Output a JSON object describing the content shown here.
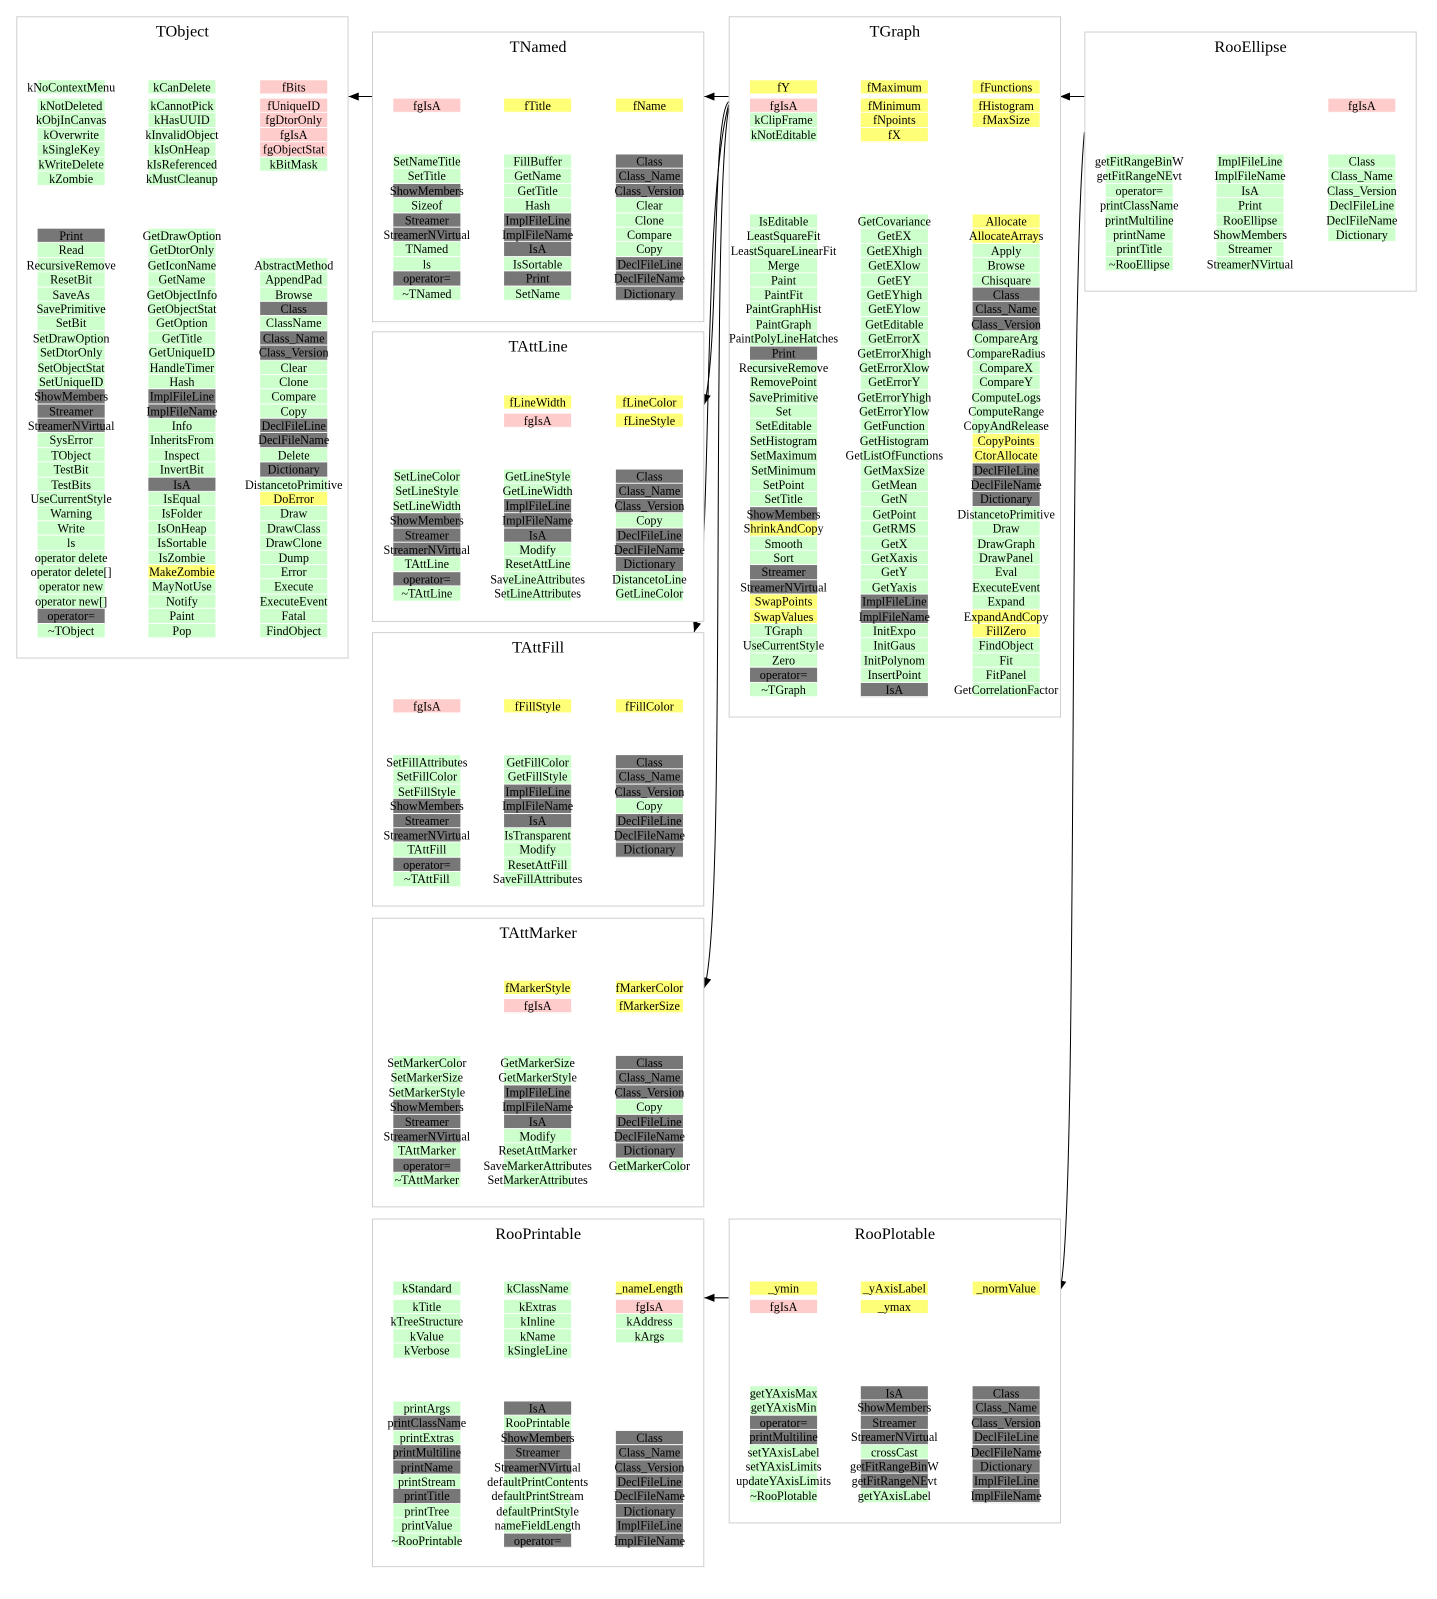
{
  "colors": {
    "g": "#ccffcc",
    "p": "#ffcccc",
    "y": "#ffff77",
    "d": "#777777"
  },
  "classes": [
    {
      "name": "TObject",
      "attributes": [
        [
          "g:kNoContextMenu",
          "g:kNotDeleted",
          "g:kObjInCanvas",
          "g:kOverwrite",
          "g:kSingleKey",
          "g:kWriteDelete",
          "g:kZombie"
        ],
        [
          "g:kCanDelete",
          "g:kCannotPick",
          "g:kHasUUID",
          "g:kInvalidObject",
          "g:kIsOnHeap",
          "g:kIsReferenced",
          "g:kMustCleanup"
        ],
        [
          "p:fBits",
          "p:fUniqueID",
          "p:fgDtorOnly",
          "p:fgIsA",
          "p:fgObjectStat",
          "g:kBitMask"
        ]
      ],
      "methods": [
        [
          "d:Print",
          "g:Read",
          "g:RecursiveRemove",
          "g:ResetBit",
          "g:SaveAs",
          "g:SavePrimitive",
          "g:SetBit",
          "g:SetDrawOption",
          "g:SetDtorOnly",
          "g:SetObjectStat",
          "g:SetUniqueID",
          "d:ShowMembers",
          "d:Streamer",
          "d:StreamerNVirtual",
          "g:SysError",
          "g:TObject",
          "g:TestBit",
          "g:TestBits",
          "g:UseCurrentStyle",
          "g:Warning",
          "g:Write",
          "g:ls",
          "g:operator delete",
          "g:operator delete[]",
          "g:operator new",
          "g:operator new[]",
          "d:operator=",
          "g:~TObject"
        ],
        [
          "g:GetDrawOption",
          "g:GetDtorOnly",
          "g:GetIconName",
          "g:GetName",
          "g:GetObjectInfo",
          "g:GetObjectStat",
          "g:GetOption",
          "g:GetTitle",
          "g:GetUniqueID",
          "g:HandleTimer",
          "g:Hash",
          "d:ImplFileLine",
          "d:ImplFileName",
          "g:Info",
          "g:InheritsFrom",
          "g:Inspect",
          "g:InvertBit",
          "d:IsA",
          "g:IsEqual",
          "g:IsFolder",
          "g:IsOnHeap",
          "g:IsSortable",
          "g:IsZombie",
          "y:MakeZombie",
          "g:MayNotUse",
          "g:Notify",
          "g:Paint",
          "g:Pop"
        ],
        [
          "g:AbstractMethod",
          "g:AppendPad",
          "g:Browse",
          "d:Class",
          "g:ClassName",
          "d:Class_Name",
          "d:Class_Version",
          "g:Clear",
          "g:Clone",
          "g:Compare",
          "g:Copy",
          "d:DeclFileLine",
          "d:DeclFileName",
          "g:Delete",
          "d:Dictionary",
          "g:DistancetoPrimitive",
          "y:DoError",
          "g:Draw",
          "g:DrawClass",
          "g:DrawClone",
          "g:Dump",
          "g:Error",
          "g:Execute",
          "g:ExecuteEvent",
          "g:Fatal",
          "g:FindObject"
        ]
      ]
    },
    {
      "name": "TNamed",
      "attributes": [
        [
          "p:fgIsA"
        ],
        [
          "y:fTitle"
        ],
        [
          "y:fName"
        ]
      ],
      "methods": [
        [
          "g:SetNameTitle",
          "g:SetTitle",
          "d:ShowMembers",
          "g:Sizeof",
          "d:Streamer",
          "d:StreamerNVirtual",
          "g:TNamed",
          "g:ls",
          "d:operator=",
          "g:~TNamed"
        ],
        [
          "g:FillBuffer",
          "g:GetName",
          "g:GetTitle",
          "g:Hash",
          "d:ImplFileLine",
          "d:ImplFileName",
          "d:IsA",
          "g:IsSortable",
          "d:Print",
          "g:SetName"
        ],
        [
          "d:Class",
          "d:Class_Name",
          "d:Class_Version",
          "g:Clear",
          "g:Clone",
          "g:Compare",
          "g:Copy",
          "d:DeclFileLine",
          "d:DeclFileName",
          "d:Dictionary"
        ]
      ]
    },
    {
      "name": "TAttLine",
      "attributes": [
        [],
        [
          "y:fLineWidth",
          "p:fgIsA"
        ],
        [
          "y:fLineColor",
          "y:fLineStyle"
        ]
      ],
      "methods": [
        [
          "g:SetLineColor",
          "g:SetLineStyle",
          "g:SetLineWidth",
          "d:ShowMembers",
          "d:Streamer",
          "d:StreamerNVirtual",
          "g:TAttLine",
          "d:operator=",
          "g:~TAttLine"
        ],
        [
          "g:GetLineStyle",
          "g:GetLineWidth",
          "d:ImplFileLine",
          "d:ImplFileName",
          "d:IsA",
          "g:Modify",
          "g:ResetAttLine",
          "g:SaveLineAttributes",
          "g:SetLineAttributes"
        ],
        [
          "d:Class",
          "d:Class_Name",
          "d:Class_Version",
          "g:Copy",
          "d:DeclFileLine",
          "d:DeclFileName",
          "d:Dictionary",
          "g:DistancetoLine",
          "g:GetLineColor"
        ]
      ]
    },
    {
      "name": "TAttFill",
      "attributes": [
        [
          "p:fgIsA"
        ],
        [
          "y:fFillStyle"
        ],
        [
          "y:fFillColor"
        ]
      ],
      "methods": [
        [
          "g:SetFillAttributes",
          "g:SetFillColor",
          "g:SetFillStyle",
          "d:ShowMembers",
          "d:Streamer",
          "d:StreamerNVirtual",
          "g:TAttFill",
          "d:operator=",
          "g:~TAttFill"
        ],
        [
          "g:GetFillColor",
          "g:GetFillStyle",
          "d:ImplFileLine",
          "d:ImplFileName",
          "d:IsA",
          "g:IsTransparent",
          "g:Modify",
          "g:ResetAttFill",
          "g:SaveFillAttributes"
        ],
        [
          "d:Class",
          "d:Class_Name",
          "d:Class_Version",
          "g:Copy",
          "d:DeclFileLine",
          "d:DeclFileName",
          "d:Dictionary"
        ]
      ]
    },
    {
      "name": "TAttMarker",
      "attributes": [
        [],
        [
          "y:fMarkerStyle",
          "p:fgIsA"
        ],
        [
          "y:fMarkerColor",
          "y:fMarkerSize"
        ]
      ],
      "methods": [
        [
          "g:SetMarkerColor",
          "g:SetMarkerSize",
          "g:SetMarkerStyle",
          "d:ShowMembers",
          "d:Streamer",
          "d:StreamerNVirtual",
          "g:TAttMarker",
          "d:operator=",
          "g:~TAttMarker"
        ],
        [
          "g:GetMarkerSize",
          "g:GetMarkerStyle",
          "d:ImplFileLine",
          "d:ImplFileName",
          "d:IsA",
          "g:Modify",
          "g:ResetAttMarker",
          "g:SaveMarkerAttributes",
          "g:SetMarkerAttributes"
        ],
        [
          "d:Class",
          "d:Class_Name",
          "d:Class_Version",
          "g:Copy",
          "d:DeclFileLine",
          "d:DeclFileName",
          "d:Dictionary",
          "g:GetMarkerColor"
        ]
      ]
    },
    {
      "name": "RooPrintable",
      "attributes": [
        [
          "g:kStandard",
          "g:kTitle",
          "g:kTreeStructure",
          "g:kValue",
          "g:kVerbose"
        ],
        [
          "g:kClassName",
          "g:kExtras",
          "g:kInline",
          "g:kName",
          "g:kSingleLine"
        ],
        [
          "y:_nameLength",
          "p:fgIsA",
          "g:kAddress",
          "g:kArgs"
        ]
      ],
      "methods": [
        [
          "g:printArgs",
          "d:printClassName",
          "g:printExtras",
          "d:printMultiline",
          "d:printName",
          "g:printStream",
          "d:printTitle",
          "g:printTree",
          "g:printValue",
          "g:~RooPrintable"
        ],
        [
          "d:IsA",
          "g:RooPrintable",
          "d:ShowMembers",
          "d:Streamer",
          "d:StreamerNVirtual",
          "g:defaultPrintContents",
          "g:defaultPrintStream",
          "g:defaultPrintStyle",
          "g:nameFieldLength",
          "d:operator="
        ],
        [
          "d:Class",
          "d:Class_Name",
          "d:Class_Version",
          "d:DeclFileLine",
          "d:DeclFileName",
          "d:Dictionary",
          "d:ImplFileLine",
          "d:ImplFileName"
        ]
      ]
    },
    {
      "name": "TGraph",
      "attributes": [
        [
          "y:fY",
          "p:fgIsA",
          "g:kClipFrame",
          "g:kNotEditable"
        ],
        [
          "y:fMaximum",
          "y:fMinimum",
          "y:fNpoints",
          "y:fX"
        ],
        [
          "y:fFunctions",
          "y:fHistogram",
          "y:fMaxSize"
        ]
      ],
      "methods": [
        [
          "g:IsEditable",
          "g:LeastSquareFit",
          "g:LeastSquareLinearFit",
          "g:Merge",
          "g:Paint",
          "g:PaintFit",
          "g:PaintGraphHist",
          "g:PaintGraph",
          "g:PaintPolyLineHatches",
          "d:Print",
          "g:RecursiveRemove",
          "g:RemovePoint",
          "g:SavePrimitive",
          "g:Set",
          "g:SetEditable",
          "g:SetHistogram",
          "g:SetMaximum",
          "g:SetMinimum",
          "g:SetPoint",
          "g:SetTitle",
          "d:ShowMembers",
          "y:ShrinkAndCopy",
          "g:Smooth",
          "g:Sort",
          "d:Streamer",
          "d:StreamerNVirtual",
          "y:SwapPoints",
          "y:SwapValues",
          "g:TGraph",
          "g:UseCurrentStyle",
          "g:Zero",
          "d:operator=",
          "g:~TGraph"
        ],
        [
          "g:GetCovariance",
          "g:GetEX",
          "g:GetEXhigh",
          "g:GetEXlow",
          "g:GetEY",
          "g:GetEYhigh",
          "g:GetEYlow",
          "g:GetEditable",
          "g:GetErrorX",
          "g:GetErrorXhigh",
          "g:GetErrorXlow",
          "g:GetErrorY",
          "g:GetErrorYhigh",
          "g:GetErrorYlow",
          "g:GetFunction",
          "g:GetHistogram",
          "g:GetListOfFunctions",
          "g:GetMaxSize",
          "g:GetMean",
          "g:GetN",
          "g:GetPoint",
          "g:GetRMS",
          "g:GetX",
          "g:GetXaxis",
          "g:GetY",
          "g:GetYaxis",
          "d:ImplFileLine",
          "d:ImplFileName",
          "g:InitExpo",
          "g:InitGaus",
          "g:InitPolynom",
          "g:InsertPoint",
          "d:IsA"
        ],
        [
          "y:Allocate",
          "y:AllocateArrays",
          "g:Apply",
          "g:Browse",
          "g:Chisquare",
          "d:Class",
          "d:Class_Name",
          "d:Class_Version",
          "g:CompareArg",
          "g:CompareRadius",
          "g:CompareX",
          "g:CompareY",
          "g:ComputeLogs",
          "g:ComputeRange",
          "g:CopyAndRelease",
          "y:CopyPoints",
          "y:CtorAllocate",
          "d:DeclFileLine",
          "d:DeclFileName",
          "d:Dictionary",
          "g:DistancetoPrimitive",
          "g:Draw",
          "g:DrawGraph",
          "g:DrawPanel",
          "g:Eval",
          "g:ExecuteEvent",
          "g:Expand",
          "y:ExpandAndCopy",
          "y:FillZero",
          "g:FindObject",
          "g:Fit",
          "g:FitPanel",
          "g:GetCorrelationFactor"
        ]
      ]
    },
    {
      "name": "RooEllipse",
      "attributes": [
        [],
        [],
        [
          "p:fgIsA"
        ]
      ],
      "methods": [
        [
          "g:getFitRangeBinW",
          "g:getFitRangeNEvt",
          "g:operator=",
          "g:printClassName",
          "g:printMultiline",
          "g:printName",
          "g:printTitle",
          "g:~RooEllipse"
        ],
        [
          "g:ImplFileLine",
          "g:ImplFileName",
          "g:IsA",
          "g:Print",
          "g:RooEllipse",
          "g:ShowMembers",
          "g:Streamer",
          "g:StreamerNVirtual"
        ],
        [
          "g:Class",
          "g:Class_Name",
          "g:Class_Version",
          "g:DeclFileLine",
          "g:DeclFileName",
          "g:Dictionary"
        ]
      ]
    },
    {
      "name": "RooPlotable",
      "attributes": [
        [
          "y:_ymin",
          "p:fgIsA"
        ],
        [
          "y:_yAxisLabel",
          "y:_ymax"
        ],
        [
          "y:_normValue"
        ]
      ],
      "methods": [
        [
          "g:getYAxisMax",
          "g:getYAxisMin",
          "d:operator=",
          "d:printMultiline",
          "g:setYAxisLabel",
          "g:setYAxisLimits",
          "g:updateYAxisLimits",
          "g:~RooPlotable"
        ],
        [
          "d:IsA",
          "d:ShowMembers",
          "d:Streamer",
          "d:StreamerNVirtual",
          "g:crossCast",
          "d:getFitRangeBinW",
          "d:getFitRangeNEvt",
          "g:getYAxisLabel"
        ],
        [
          "d:Class",
          "d:Class_Name",
          "d:Class_Version",
          "d:DeclFileLine",
          "d:DeclFileName",
          "d:Dictionary",
          "d:ImplFileLine",
          "d:ImplFileName"
        ]
      ]
    }
  ],
  "edges": [
    {
      "from": "TNamed",
      "to": "TObject"
    },
    {
      "from": "TGraph",
      "to": "TNamed"
    },
    {
      "from": "TGraph",
      "to": "TAttLine"
    },
    {
      "from": "TGraph",
      "to": "TAttFill"
    },
    {
      "from": "TGraph",
      "to": "TAttMarker"
    },
    {
      "from": "RooEllipse",
      "to": "TGraph"
    },
    {
      "from": "RooEllipse",
      "to": "RooPlotable"
    },
    {
      "from": "RooPlotable",
      "to": "RooPrintable"
    }
  ]
}
